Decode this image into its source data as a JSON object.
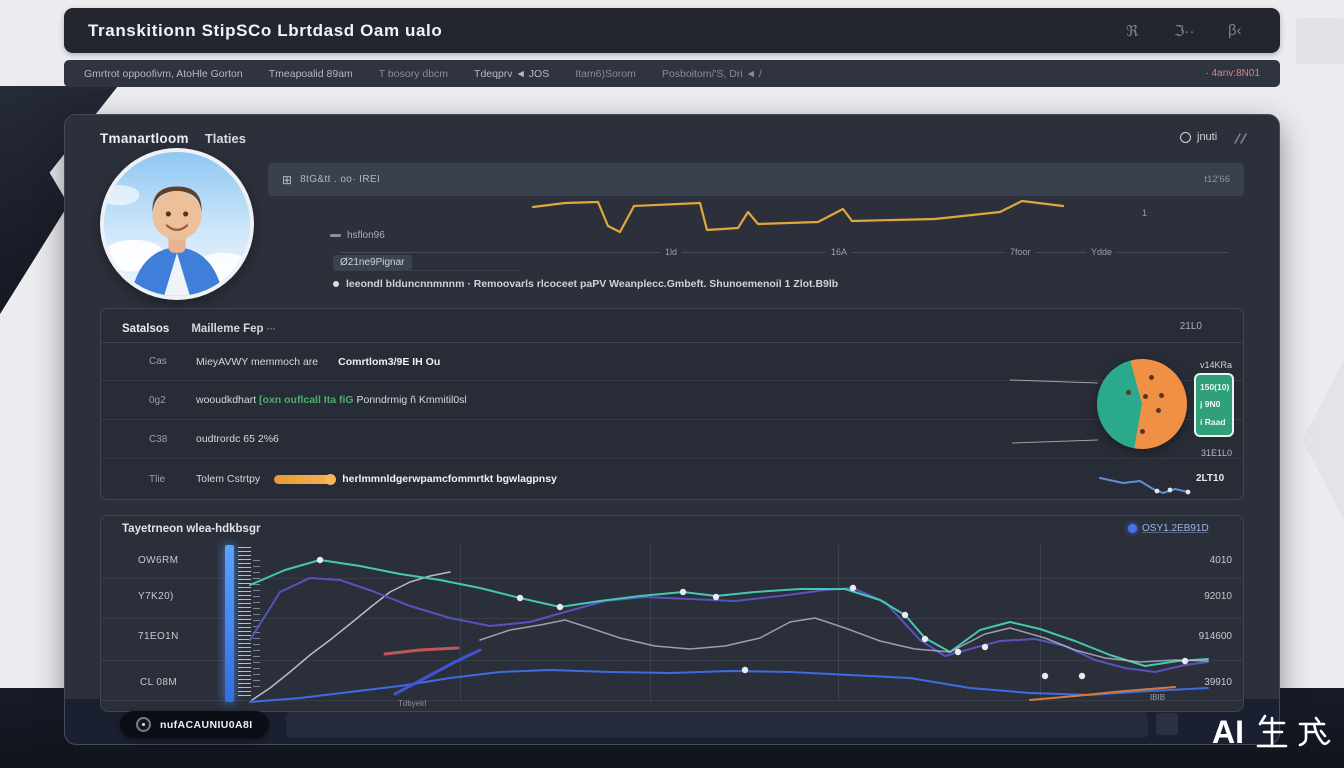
{
  "header": {
    "title": "Transkitionn StipSCo Lbrtdasd Oam ualo",
    "icon1": "ℜ",
    "icon2": "ℑ··",
    "icon3": "β‹"
  },
  "nav": {
    "items": [
      "Gmrtrot oppoofivm, AtoHle Gorton",
      "Tmeapoalid 89am",
      "T bosory dbcm",
      "Tdeqprv ◄ JOS",
      "Itam6)Sorom",
      "Posboitom/'S, Dri ◄ /"
    ],
    "alert": "· 4anv:8N01"
  },
  "panel": {
    "title": "Tmanartloom",
    "subtitle": "Tlaties",
    "refresh_label": "jnuti"
  },
  "overview": {
    "toolbar_icon": "⊞",
    "toolbar_text": "8tG&tt . oo· IREI",
    "toolbar_right": "t12'66",
    "legend1": "hsflon96",
    "legend2": "Ø21ne9Pignar",
    "xticks": [
      "1ld",
      "16A",
      "7foor",
      "Ydde"
    ],
    "side_mark": "1",
    "caption": "leeondl blduncnnmnnm · Remoovarls rlcoceet paPV Weanplecc.Gmbeft. Shunoemenoil 1 Zlot.B9lb"
  },
  "table": {
    "title": "Satalsos",
    "subtitle": "Mailleme Fep",
    "subtle": "···",
    "header_value": "21L0",
    "rows": [
      {
        "label": "Cas",
        "text": "MieyAVWY memmoch are",
        "text2": "Comrtlom3/9E IH Ou"
      },
      {
        "label": "0g2",
        "pre": "wooudkdhart ",
        "green": "[oxn ouflcall Ita fiG",
        "post": " Ponndrmig ñ Kmmitil0sl"
      },
      {
        "label": "C38",
        "text": "oudtrordc 65 2%6"
      },
      {
        "label": "Tlie",
        "text": "Tolem Cstrtpy",
        "bold": "herlmmnldgerwpamcfommrtkt bgwlagpnsy",
        "value": "2LT10"
      }
    ],
    "pie": {
      "color_main": "#f09044",
      "color_alt": "#2aa98b",
      "alt_start": 190,
      "alt_end": 345,
      "legend_title": "v14KRa",
      "box_lines": [
        "150(10)",
        "j 9N0",
        "i Raad"
      ],
      "footer": "31E1L0",
      "dots": [
        [
          -14,
          -12
        ],
        [
          3,
          -8
        ],
        [
          19,
          -9
        ],
        [
          16,
          6
        ],
        [
          0,
          27
        ],
        [
          9,
          -27
        ]
      ]
    }
  },
  "bottom": {
    "title": "Tayetrneon wlea-hdkbsgr",
    "link": "OSY1.2EB91D",
    "ylabels": [
      "OW6RM",
      "Y7K20)",
      "71EO1N",
      "CL 08M"
    ],
    "values": [
      "4010",
      "92010",
      "914600",
      "39910"
    ],
    "xlabel": "Tdbyelrl",
    "corner": "IBIB"
  },
  "footer": {
    "button": "nufACAUNIU0A8I"
  },
  "watermark": "AI",
  "charts": {
    "spark_top": {
      "series": [
        {
          "color": "#e3a63e",
          "width": 2.2,
          "points": [
            [
              33,
              17
            ],
            [
              65,
              13
            ],
            [
              98,
              12
            ],
            [
              108,
              36
            ],
            [
              120,
              42
            ],
            [
              134,
              16
            ],
            [
              200,
              13
            ],
            [
              207,
              40
            ],
            [
              238,
              38
            ],
            [
              248,
              22
            ],
            [
              258,
              34
            ],
            [
              318,
              32
            ],
            [
              343,
              19
            ],
            [
              352,
              31
            ],
            [
              435,
              29
            ],
            [
              500,
              22
            ],
            [
              522,
              11
            ],
            [
              563,
              16
            ]
          ]
        }
      ]
    },
    "spark_table": {
      "series": [
        {
          "color": "#5f8fd6",
          "width": 2,
          "points": [
            [
              5,
              8
            ],
            [
              28,
              13
            ],
            [
              45,
              11
            ],
            [
              58,
              19
            ],
            [
              68,
              23
            ],
            [
              80,
              19
            ],
            [
              93,
              22
            ]
          ]
        }
      ],
      "dots": [
        [
          62,
          21
        ],
        [
          75,
          20
        ],
        [
          93,
          22
        ]
      ],
      "dot_color": "#dfe5ee",
      "dot_r": 2.4
    },
    "main": {
      "series": [
        {
          "color": "#c9ccd6",
          "width": 1.5,
          "opacity": 0.9,
          "points": [
            [
              34,
              155
            ],
            [
              52,
              143
            ],
            [
              72,
              127
            ],
            [
              92,
              110
            ],
            [
              112,
              95
            ],
            [
              132,
              79
            ],
            [
              154,
              61
            ],
            [
              172,
              47
            ],
            [
              192,
              37
            ],
            [
              212,
              31
            ],
            [
              232,
              27
            ]
          ]
        },
        {
          "color": "#5b54c7",
          "width": 2,
          "opacity": 0.95,
          "points": [
            [
              32,
              95
            ],
            [
              62,
              47
            ],
            [
              92,
              33
            ],
            [
              122,
              35
            ],
            [
              157,
              47
            ],
            [
              192,
              61
            ],
            [
              232,
              73
            ],
            [
              272,
              81
            ],
            [
              312,
              77
            ],
            [
              347,
              67
            ],
            [
              387,
              56
            ],
            [
              427,
              52
            ],
            [
              472,
              54
            ],
            [
              517,
              56
            ],
            [
              562,
              51
            ],
            [
              607,
              45
            ],
            [
              635,
              43
            ],
            [
              667,
              57
            ],
            [
              702,
              95
            ],
            [
              727,
              111
            ],
            [
              752,
              104
            ],
            [
              782,
              96
            ],
            [
              817,
              94
            ],
            [
              847,
              101
            ],
            [
              877,
              115
            ],
            [
              907,
              123
            ],
            [
              937,
              127
            ],
            [
              967,
              120
            ],
            [
              990,
              117
            ]
          ]
        },
        {
          "color": "#45c8b2",
          "width": 2,
          "points": [
            [
              32,
              40
            ],
            [
              67,
              25
            ],
            [
              102,
              15
            ],
            [
              142,
              21
            ],
            [
              182,
              29
            ],
            [
              222,
              35
            ],
            [
              262,
              43
            ],
            [
              302,
              53
            ],
            [
              342,
              62
            ],
            [
              382,
              56
            ],
            [
              422,
              51
            ],
            [
              465,
              47
            ],
            [
              498,
              51
            ],
            [
              537,
              47
            ],
            [
              582,
              44
            ],
            [
              627,
              44
            ],
            [
              662,
              55
            ],
            [
              687,
              70
            ],
            [
              707,
              93
            ],
            [
              732,
              107
            ],
            [
              762,
              85
            ],
            [
              792,
              77
            ],
            [
              822,
              84
            ],
            [
              857,
              96
            ],
            [
              892,
              110
            ],
            [
              927,
              121
            ],
            [
              960,
              116
            ],
            [
              990,
              114
            ]
          ]
        },
        {
          "color": "#b9bcc8",
          "width": 1.5,
          "opacity": 0.8,
          "points": [
            [
              262,
              95
            ],
            [
              292,
              85
            ],
            [
              322,
              80
            ],
            [
              347,
              75
            ],
            [
              372,
              83
            ],
            [
              402,
              93
            ],
            [
              437,
              101
            ],
            [
              472,
              104
            ],
            [
              507,
              101
            ],
            [
              542,
              93
            ],
            [
              572,
              77
            ],
            [
              597,
              73
            ],
            [
              627,
              83
            ],
            [
              662,
              96
            ],
            [
              697,
              104
            ],
            [
              732,
              107
            ],
            [
              767,
              89
            ],
            [
              792,
              83
            ],
            [
              827,
              93
            ],
            [
              857,
              105
            ],
            [
              887,
              113
            ],
            [
              922,
              117
            ],
            [
              957,
              115
            ],
            [
              990,
              116
            ]
          ]
        },
        {
          "color": "#3f6be0",
          "width": 2,
          "points": [
            [
              32,
              157
            ],
            [
              82,
              153
            ],
            [
              132,
              147
            ],
            [
              182,
              141
            ],
            [
              232,
              133
            ],
            [
              282,
              127
            ],
            [
              332,
              125
            ],
            [
              392,
              127
            ],
            [
              452,
              128
            ],
            [
              512,
              126
            ],
            [
              572,
              127
            ],
            [
              632,
              130
            ],
            [
              692,
              133
            ],
            [
              752,
              143
            ],
            [
              812,
              148
            ],
            [
              872,
              150
            ],
            [
              932,
              146
            ],
            [
              990,
              143
            ]
          ]
        },
        {
          "color": "#4356e8",
          "width": 3,
          "opacity": 0.9,
          "points": [
            [
              177,
              149
            ],
            [
              207,
              133
            ],
            [
              237,
              117
            ],
            [
              262,
              105
            ]
          ]
        },
        {
          "color": "#c05555",
          "width": 3,
          "points": [
            [
              167,
              109
            ],
            [
              202,
              105
            ],
            [
              240,
              103
            ]
          ]
        },
        {
          "color": "#d87a3a",
          "width": 2,
          "points": [
            [
              812,
              155
            ],
            [
              857,
              151
            ],
            [
              907,
              146
            ],
            [
              957,
              142
            ]
          ]
        }
      ],
      "dots": [
        [
          342,
          62
        ],
        [
          465,
          47
        ],
        [
          498,
          52
        ],
        [
          527,
          125
        ],
        [
          635,
          43
        ],
        [
          687,
          70
        ],
        [
          707,
          94
        ],
        [
          740,
          107
        ],
        [
          767,
          102
        ],
        [
          827,
          131
        ],
        [
          864,
          131
        ],
        [
          967,
          116
        ],
        [
          102,
          15
        ],
        [
          302,
          53
        ]
      ],
      "dot_color": "#e9ebf2",
      "dot_r": 3.2
    }
  }
}
